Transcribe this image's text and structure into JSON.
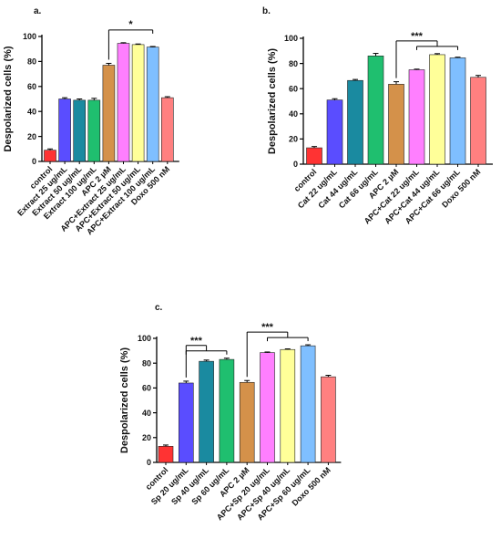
{
  "chart_data": [
    {
      "type": "bar",
      "panel": "a.",
      "ylabel": "Despolarized cells (%)",
      "ylim": [
        0,
        100
      ],
      "yticks": [
        0,
        20,
        40,
        60,
        80,
        100
      ],
      "categories": [
        "control",
        "Extract 25 ug/mL",
        "Extract 50 ug/mL",
        "Extract 100 ug/mL",
        "APC 2 µM",
        "APC+Extract 25 ug/mL",
        "APC+Extract 50 ug/mL",
        "APC+Extract 100 ug/mL",
        "Doxo 500 nM"
      ],
      "values": [
        9,
        50,
        49,
        49,
        77,
        94.5,
        93.5,
        91.5,
        51
      ],
      "errors": [
        1,
        1,
        1,
        1.5,
        1.5,
        0.5,
        0.5,
        0.5,
        0.8
      ],
      "colors": [
        "#ff3333",
        "#5a4dff",
        "#1a8aa0",
        "#1fbf6f",
        "#d4914a",
        "#ff7fff",
        "#ffff99",
        "#7fbfff",
        "#ff8080"
      ],
      "significance": [
        {
          "label": "*",
          "from": 4,
          "to": 7
        }
      ]
    },
    {
      "type": "bar",
      "panel": "b.",
      "ylabel": "Despolarized cells (%)",
      "ylim": [
        0,
        100
      ],
      "yticks": [
        0,
        20,
        40,
        60,
        80,
        100
      ],
      "categories": [
        "control",
        "Cat 22 ug/mL",
        "Cat 44 ug/mL",
        "Cat 66 ug/mL",
        "APC 2 µM",
        "APC+Cat 22 ug/mL",
        "APC+Cat 44 ug/mL",
        "APC+Cat 66 ug/mL",
        "Doxo 500 nM"
      ],
      "values": [
        13,
        51,
        66.5,
        86,
        63.5,
        75,
        87,
        84.5,
        69
      ],
      "errors": [
        1,
        1,
        0.8,
        2,
        2,
        0.5,
        0.8,
        0.5,
        1.5
      ],
      "colors": [
        "#ff3333",
        "#5a4dff",
        "#1a8aa0",
        "#1fbf6f",
        "#d4914a",
        "#ff7fff",
        "#ffff99",
        "#7fbfff",
        "#ff8080"
      ],
      "significance": [
        {
          "label": "***",
          "from": 4,
          "to": 7,
          "mid": 6
        }
      ]
    },
    {
      "type": "bar",
      "panel": "c.",
      "ylabel": "Despolarized cells (%)",
      "ylim": [
        0,
        100
      ],
      "yticks": [
        0,
        20,
        40,
        60,
        80,
        100
      ],
      "categories": [
        "control",
        "Sp 20 ug/mL",
        "Sp 40 ug/mL",
        "Sp 60 ug/mL",
        "APC 2 µM",
        "APC+Sp 20 ug/mL",
        "APC+Sp 40 ug/mL",
        "APC+Sp 60 ug/mL",
        "Doxo 500 nM"
      ],
      "values": [
        13,
        64,
        81.5,
        83,
        64.5,
        88.5,
        91,
        94,
        69
      ],
      "errors": [
        1,
        1.5,
        1,
        1,
        1.5,
        0.5,
        0.5,
        0.8,
        1.2
      ],
      "colors": [
        "#ff3333",
        "#5a4dff",
        "#1a8aa0",
        "#1fbf6f",
        "#d4914a",
        "#ff7fff",
        "#ffff99",
        "#7fbfff",
        "#ff8080"
      ],
      "significance": [
        {
          "label": "***",
          "from": 1,
          "to": 3,
          "mid": 2
        },
        {
          "label": "***",
          "from": 4,
          "to": 7,
          "mid": 6
        }
      ]
    }
  ]
}
